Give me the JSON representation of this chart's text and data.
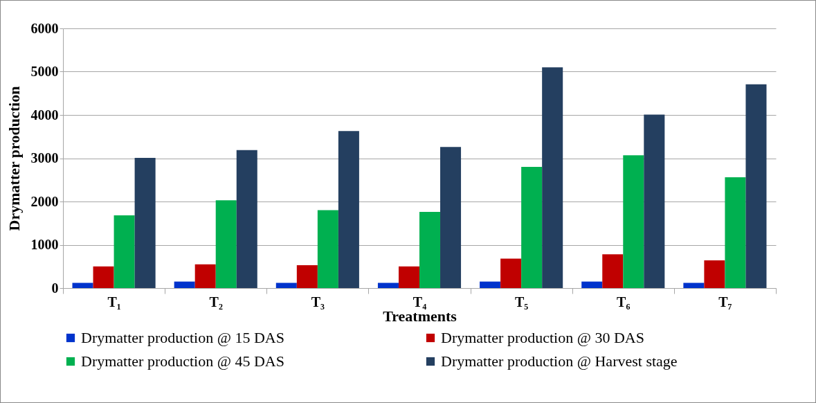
{
  "chart_data": {
    "type": "bar",
    "xlabel": "Treatments",
    "ylabel": "Drymatter production",
    "categories": [
      "T₁",
      "T₂",
      "T₃",
      "T₄",
      "T₅",
      "T₆",
      "T₇"
    ],
    "series": [
      {
        "name": "Drymatter production @ 15 DAS",
        "color": "#0033cc",
        "values": [
          120,
          150,
          120,
          120,
          150,
          150,
          120
        ]
      },
      {
        "name": "Drymatter production @ 30 DAS",
        "color": "#c00000",
        "values": [
          500,
          550,
          530,
          500,
          680,
          780,
          640
        ]
      },
      {
        "name": "Drymatter production @ 45 DAS",
        "color": "#00b050",
        "values": [
          1680,
          2030,
          1800,
          1760,
          2800,
          3070,
          2560
        ]
      },
      {
        "name": "Drymatter production @ Harvest stage",
        "color": "#243f60",
        "values": [
          3010,
          3190,
          3630,
          3260,
          5100,
          4010,
          4710
        ]
      }
    ],
    "ylim": [
      0,
      6000
    ],
    "yticks": [
      0,
      1000,
      2000,
      3000,
      4000,
      5000,
      6000
    ],
    "grid": "y",
    "legend": "bottom"
  }
}
